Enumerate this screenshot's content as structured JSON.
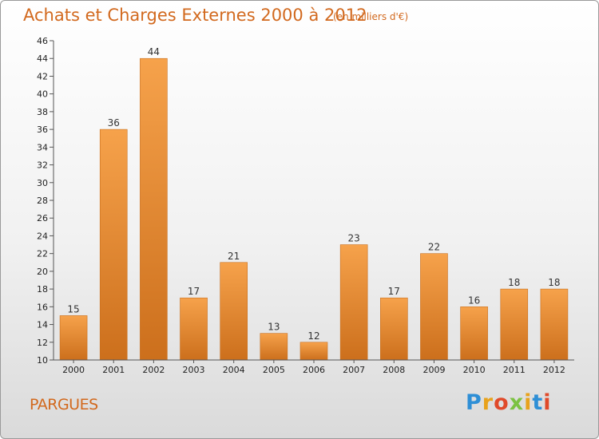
{
  "title": "Achats et Charges Externes 2000 à 2012",
  "unit_label": "(en milliers d'€)",
  "commune": "PARGUES",
  "logo": {
    "text": "Proxiti",
    "colors": [
      "#2e8fd6",
      "#e8a21c",
      "#e04a2a",
      "#7cc243",
      "#e8a21c",
      "#2e8fd6",
      "#e04a2a"
    ]
  },
  "colors": {
    "accent": "#d2691e",
    "bar_light": "#f6a24b",
    "bar_dark": "#cc6f1c"
  },
  "chart_data": {
    "type": "bar",
    "categories": [
      "2000",
      "2001",
      "2002",
      "2003",
      "2004",
      "2005",
      "2006",
      "2007",
      "2008",
      "2009",
      "2010",
      "2011",
      "2012"
    ],
    "values": [
      15,
      36,
      44,
      17,
      21,
      13,
      12,
      23,
      17,
      22,
      16,
      18,
      18
    ],
    "yticks": [
      10,
      12,
      14,
      16,
      18,
      20,
      22,
      24,
      26,
      28,
      30,
      32,
      34,
      36,
      38,
      40,
      42,
      44,
      46
    ],
    "ylim": [
      10,
      46
    ],
    "grid": false,
    "legend": "none"
  }
}
